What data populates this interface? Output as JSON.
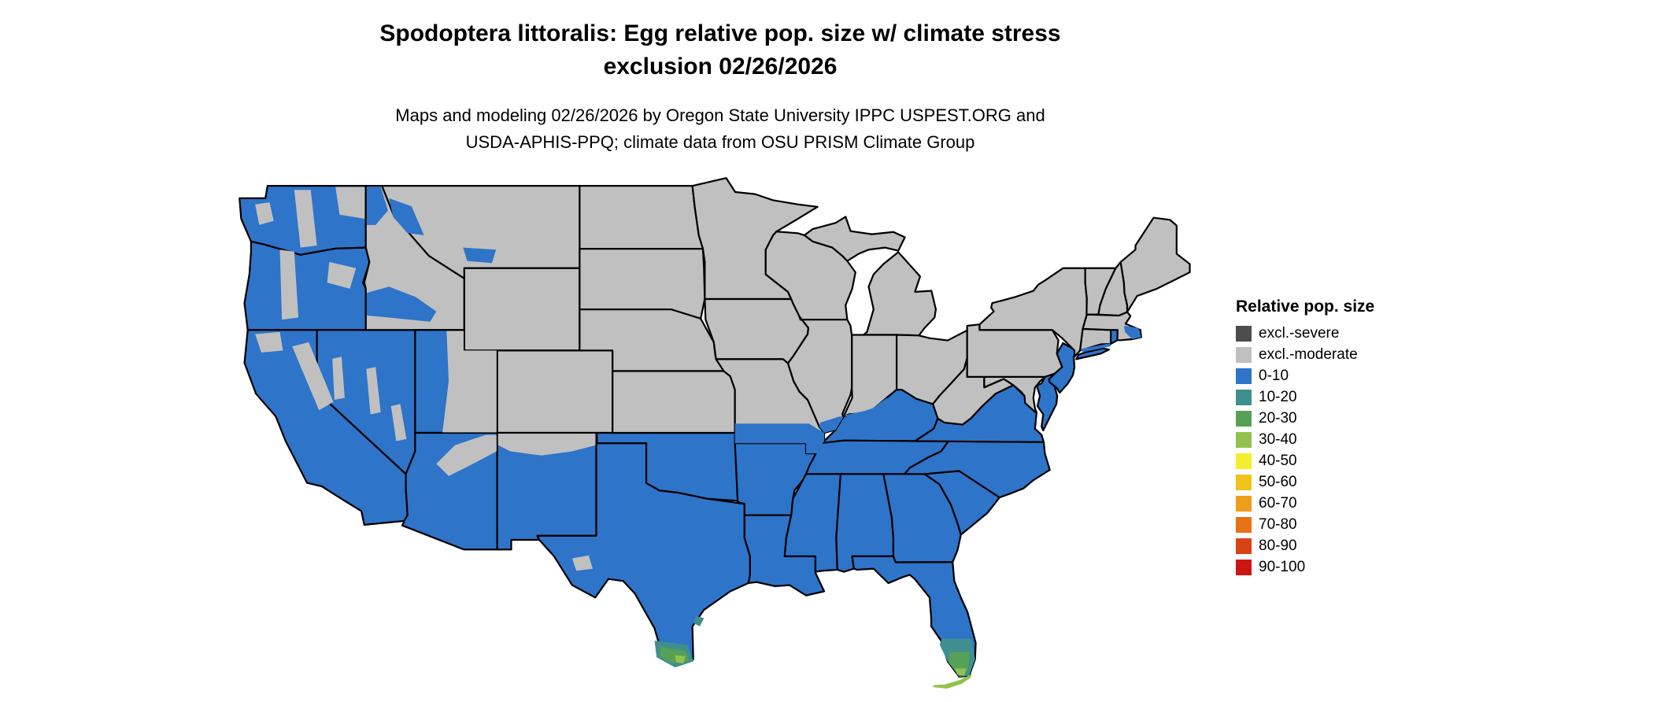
{
  "title": {
    "line1": "Spodoptera littoralis: Egg relative pop. size w/ climate stress",
    "line2": "exclusion 02/26/2026"
  },
  "subtitle": {
    "line1": "Maps and modeling 02/26/2026 by Oregon State University IPPC USPEST.ORG and",
    "line2": "USDA-APHIS-PPQ; climate data from OSU PRISM Climate Group"
  },
  "legend": {
    "title": "Relative pop. size",
    "items": [
      {
        "label": "excl.-severe",
        "category": "excl-severe"
      },
      {
        "label": "excl.-moderate",
        "category": "excl-moderate"
      },
      {
        "label": "0-10",
        "category": "0-10"
      },
      {
        "label": "10-20",
        "category": "10-20"
      },
      {
        "label": "20-30",
        "category": "20-30"
      },
      {
        "label": "30-40",
        "category": "30-40"
      },
      {
        "label": "40-50",
        "category": "40-50"
      },
      {
        "label": "50-60",
        "category": "50-60"
      },
      {
        "label": "60-70",
        "category": "60-70"
      },
      {
        "label": "70-80",
        "category": "70-80"
      },
      {
        "label": "80-90",
        "category": "80-90"
      },
      {
        "label": "90-100",
        "category": "90-100"
      }
    ]
  },
  "categories": {
    "excl-severe": "#4d4d4d",
    "excl-moderate": "#c0c0c0",
    "0-10": "#2e74c9",
    "10-20": "#3f8f90",
    "20-30": "#57a157",
    "30-40": "#92c24d",
    "40-50": "#f1ef30",
    "50-60": "#efc319",
    "60-70": "#ef9e1c",
    "70-80": "#e67317",
    "80-90": "#d84315",
    "90-100": "#cc1612"
  },
  "map": {
    "background": "#ffffff",
    "border_color": "#000000",
    "state_fills": {
      "WA": "0-10",
      "OR": "0-10",
      "CA": "0-10",
      "NV": "0-10",
      "ID": "excl-moderate",
      "MT": "excl-moderate",
      "WY": "excl-moderate",
      "UT": "0-10",
      "CO": "excl-moderate",
      "AZ": "0-10",
      "NM": "0-10",
      "TX": "0-10",
      "OK": "0-10",
      "KS": "excl-moderate",
      "NE": "excl-moderate",
      "SD": "excl-moderate",
      "ND": "excl-moderate",
      "MN": "excl-moderate",
      "IA": "excl-moderate",
      "MO": "excl-moderate",
      "AR": "0-10",
      "LA": "0-10",
      "WI": "excl-moderate",
      "IL": "excl-moderate",
      "MIU": "excl-moderate",
      "MIL": "excl-moderate",
      "IN": "excl-moderate",
      "OH": "excl-moderate",
      "KY": "0-10",
      "TN": "0-10",
      "MS": "0-10",
      "AL": "0-10",
      "GA": "0-10",
      "FL": "0-10",
      "SC": "0-10",
      "NC": "0-10",
      "VA": "0-10",
      "WV": "excl-moderate",
      "PA": "excl-moderate",
      "NY": "excl-moderate",
      "LI": "0-10",
      "NJ": "0-10",
      "CT": "excl-moderate",
      "RI": "0-10",
      "MA": "excl-moderate",
      "VT": "excl-moderate",
      "NH": "excl-moderate",
      "ME": "excl-moderate",
      "MD": "excl-moderate",
      "DMV": "0-10"
    },
    "overlay_fills": {
      "wa-olympics": "excl-moderate",
      "wa-cascades": "excl-moderate",
      "wa-okanogan": "excl-moderate",
      "or-cascades": "excl-moderate",
      "or-blue-mountains": "excl-moderate",
      "ca-klamath": "excl-moderate",
      "ca-sierra": "excl-moderate",
      "nv-range-west": "excl-moderate",
      "nv-range-central": "excl-moderate",
      "nv-range-east": "excl-moderate",
      "ut-east": "excl-moderate",
      "az-mogollon": "excl-moderate",
      "nm-north": "excl-moderate",
      "tx-davis-mountains": "excl-moderate",
      "mt-west": "0-10",
      "mt-south": "0-10",
      "id-panhandle": "0-10",
      "id-snake-plain": "0-10",
      "mo-south": "0-10",
      "il-south": "0-10",
      "in-ohio-valley": "0-10",
      "cape-cod": "0-10",
      "ct-coast": "0-10",
      "tx-rgv-teal": "10-20",
      "tx-rgv-green": "20-30",
      "tx-rgv-3040": "30-40",
      "tx-corpus-teal": "10-20",
      "fl-south-teal": "10-20",
      "fl-south-green": "20-30",
      "fl-tip-3040": "30-40",
      "fl-keys": "30-40"
    }
  }
}
